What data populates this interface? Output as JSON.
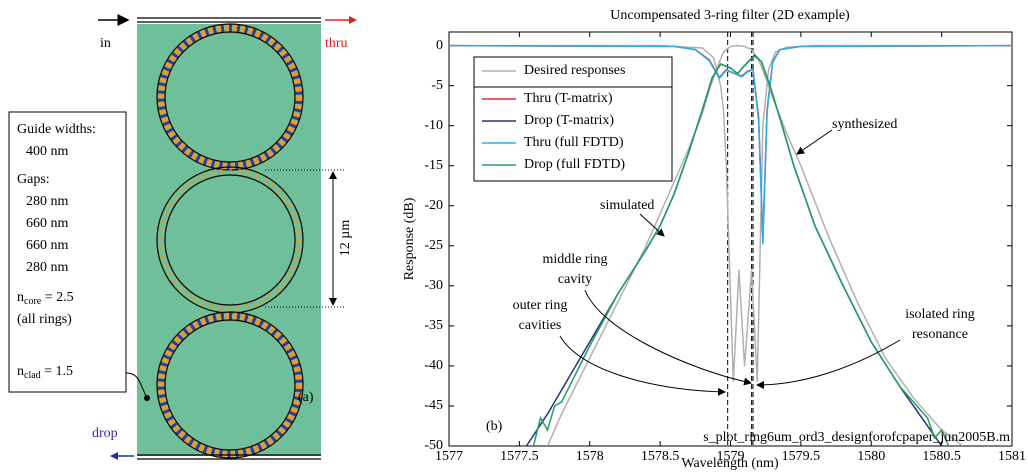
{
  "diagram": {
    "input": "in",
    "thru": "thru",
    "drop": "drop",
    "panel": "(a)",
    "ring_pitch": "12 µm",
    "guide_widths_title": "Guide widths:",
    "guide_width": "400 nm",
    "gaps_title": "Gaps:",
    "gaps": [
      "280 nm",
      "660 nm",
      "660 nm",
      "280 nm"
    ],
    "n_core": {
      "symbol": "n",
      "subscript": "core",
      "value": " = 2.5"
    },
    "n_core_note": "(all rings)",
    "n_clad": {
      "symbol": "n",
      "subscript": "clad",
      "value": " = 1.5"
    }
  },
  "chart_data": {
    "type": "line",
    "title": "Uncompensated 3-ring filter (2D example)",
    "xlabel": "Wavelength (nm)",
    "ylabel": "Response (dB)",
    "xlim": [
      1577,
      1581
    ],
    "xticks": [
      1577,
      1577.5,
      1578,
      1578.5,
      1579,
      1579.5,
      1580,
      1580.5,
      1581
    ],
    "ylim": [
      -50,
      1.7
    ],
    "yticks": [
      0,
      -5,
      -10,
      -15,
      -20,
      -25,
      -30,
      -35,
      -40,
      -45,
      -50
    ],
    "grid": false,
    "legend": "upper-left",
    "vlines": [
      1578.98,
      1579.15,
      1579.16
    ],
    "series": [
      {
        "name": "Desired responses",
        "color": "#b0b0b0",
        "x": [
          1577.7,
          1577.8,
          1578,
          1578.2,
          1578.4,
          1578.6,
          1578.7,
          1578.8,
          1578.85,
          1578.9,
          1578.95,
          1579,
          1579.05,
          1579.1,
          1579.15,
          1579.2,
          1579.25,
          1579.3,
          1579.4,
          1579.5,
          1579.7,
          1579.9,
          1580.1,
          1580.3,
          1580.5,
          1580.65
        ],
        "values": [
          -50,
          -46,
          -39,
          -32,
          -25,
          -17,
          -13,
          -8.5,
          -5.5,
          -3,
          -0.8,
          -0.1,
          0,
          -0.1,
          -0.5,
          -1.8,
          -4,
          -6.5,
          -11,
          -15,
          -24,
          -32,
          -39,
          -44,
          -48,
          -50
        ]
      },
      {
        "color": "#b0b0b0",
        "x": [
          1577,
          1578.5,
          1578.8,
          1578.88,
          1578.93,
          1578.95,
          1578.97,
          1579.02,
          1579.06,
          1579.1,
          1579.15,
          1579.19,
          1579.23,
          1579.27,
          1579.32,
          1579.4,
          1579.6,
          1581
        ],
        "values": [
          0,
          0,
          -0.3,
          -1.5,
          -5,
          -8,
          -15,
          -42,
          -28,
          -40,
          -28,
          -42,
          -10,
          -3,
          -0.8,
          -0.2,
          0,
          0
        ]
      },
      {
        "name": "Thru (T-matrix)",
        "color": "#d62a3a",
        "x": [
          1577,
          1578.6,
          1578.75,
          1578.85,
          1578.92,
          1578.97,
          1579.03,
          1579.08,
          1579.12,
          1579.16,
          1579.2,
          1579.23,
          1579.26,
          1579.3,
          1579.35,
          1579.5,
          1581
        ],
        "values": [
          0,
          -0.1,
          -0.5,
          -1.8,
          -4,
          -3,
          -3.5,
          -3.8,
          -3.2,
          -3,
          -9,
          -24,
          -8,
          -2,
          -0.5,
          -0.1,
          0
        ]
      },
      {
        "name": "Drop (T-matrix)",
        "color": "#27337a",
        "x": [
          1577.55,
          1577.7,
          1578,
          1578.2,
          1578.4,
          1578.5,
          1578.6,
          1578.7,
          1578.8,
          1578.87,
          1578.93,
          1579,
          1579.05,
          1579.1,
          1579.17,
          1579.22,
          1579.28,
          1579.35,
          1579.45,
          1579.6,
          1579.8,
          1580,
          1580.2,
          1580.4,
          1580.5
        ],
        "values": [
          -50,
          -46,
          -37,
          -31,
          -25.5,
          -22.5,
          -18.5,
          -13.5,
          -8,
          -4,
          -2.3,
          -2.8,
          -3.5,
          -2.5,
          -1.2,
          -2,
          -5,
          -9,
          -15,
          -22.5,
          -30,
          -37,
          -42.5,
          -47.5,
          -50
        ]
      },
      {
        "name": "Thru (full FDTD)",
        "color": "#2ab0e8",
        "x": [
          1577,
          1578.6,
          1578.75,
          1578.85,
          1578.92,
          1578.97,
          1579.03,
          1579.08,
          1579.12,
          1579.16,
          1579.2,
          1579.23,
          1579.26,
          1579.3,
          1579.35,
          1579.5,
          1581
        ],
        "values": [
          0,
          -0.1,
          -0.5,
          -1.9,
          -4.1,
          -3.1,
          -3.5,
          -3.9,
          -3.3,
          -3,
          -9.5,
          -24.8,
          -8.3,
          -2.1,
          -0.5,
          -0.1,
          0
        ]
      },
      {
        "name": "Drop (full FDTD)",
        "color": "#22a05a",
        "x": [
          1577.6,
          1577.65,
          1577.7,
          1577.75,
          1577.8,
          1578,
          1578.2,
          1578.4,
          1578.5,
          1578.6,
          1578.7,
          1578.8,
          1578.87,
          1578.93,
          1579,
          1579.05,
          1579.1,
          1579.17,
          1579.22,
          1579.28,
          1579.35,
          1579.45,
          1579.6,
          1579.8,
          1580,
          1580.2,
          1580.35,
          1580.4,
          1580.45,
          1580.5,
          1580.55
        ],
        "values": [
          -50,
          -46.5,
          -48,
          -45,
          -44.5,
          -37.5,
          -31,
          -25.5,
          -22.5,
          -18.5,
          -13.5,
          -8,
          -4,
          -2.3,
          -2.8,
          -3.5,
          -2.5,
          -1.3,
          -2,
          -5,
          -9,
          -15,
          -22.5,
          -30,
          -37,
          -42.5,
          -45.5,
          -46.5,
          -49,
          -48,
          -50
        ]
      }
    ],
    "annotations": [
      {
        "text": [
          "simulated"
        ]
      },
      {
        "text": [
          "synthesized"
        ]
      },
      {
        "text": [
          "middle ring",
          "cavity"
        ]
      },
      {
        "text": [
          "outer ring",
          "cavities"
        ]
      },
      {
        "text": [
          "isolated ring",
          "resonance"
        ]
      },
      {
        "text": [
          "(b)"
        ]
      },
      {
        "text": [
          "s_plot_ring6um_ord3_designforofcpaper_jun2005B.m"
        ]
      }
    ]
  }
}
